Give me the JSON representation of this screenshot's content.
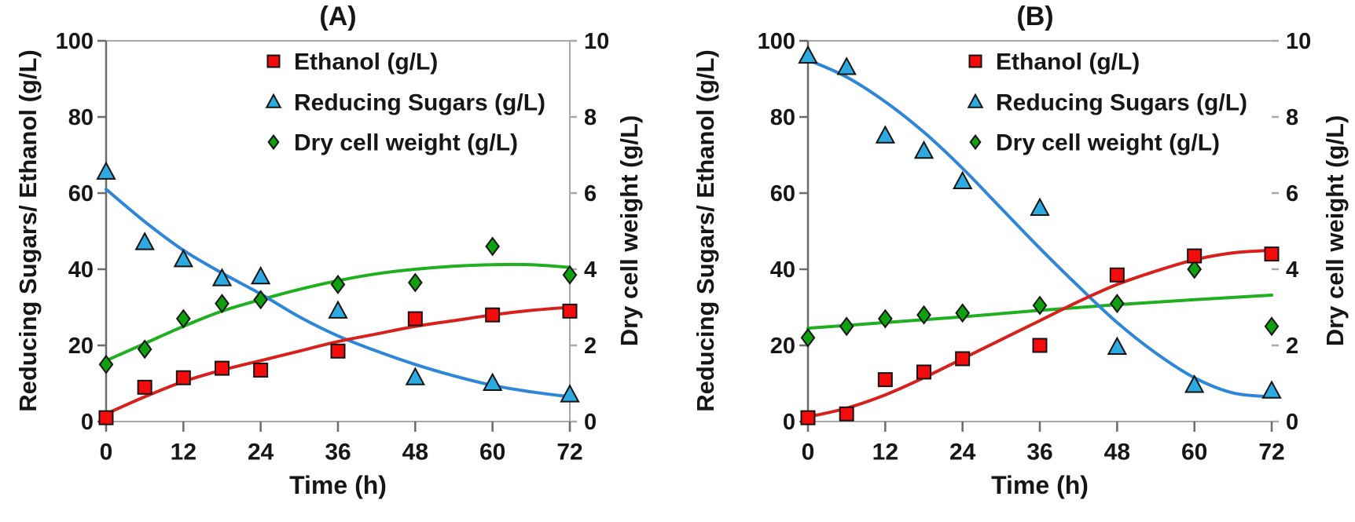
{
  "figure": {
    "background": "#ffffff",
    "panel_count": 2
  },
  "colors": {
    "ethanol_marker": "#f40b0b",
    "ethanol_line": "#d8201c",
    "sugars_marker": "#2eaae2",
    "sugars_line": "#2e86d8",
    "dcw_marker": "#0fa00f",
    "dcw_line": "#1faf1f",
    "marker_outline": "#141414",
    "frame_gray": "#a8a8a8",
    "axis_dark": "#6b6b6b",
    "text": "#161616"
  },
  "chart_data": [
    {
      "type": "scatter",
      "title": "(A)",
      "xlabel": "Time (h)",
      "ylabel_left": "Reducing Sugars/ Ethanol (g/L)",
      "ylabel_right": "Dry cell weight (g/L)",
      "x_max": 72,
      "x_ticks": [
        0,
        12,
        24,
        36,
        48,
        60,
        72
      ],
      "y_left_range": [
        0,
        100
      ],
      "y_left_ticks": [
        0,
        20,
        40,
        60,
        80,
        100
      ],
      "y_right_range": [
        0,
        10
      ],
      "y_right_ticks": [
        0,
        2,
        4,
        6,
        8,
        10
      ],
      "legend_position": "top-center-inside",
      "grid": false,
      "x": [
        0,
        6,
        12,
        18,
        24,
        36,
        48,
        60,
        72
      ],
      "series": [
        {
          "key": "ethanol",
          "name": "Ethanol (g/L)",
          "axis": "left",
          "marker": "square",
          "marker_color": "#f40b0b",
          "line_color": "#d8201c",
          "values": [
            1,
            9,
            11.5,
            14,
            13.5,
            18.5,
            27,
            28,
            29
          ],
          "trend": [
            [
              0,
              2
            ],
            [
              6,
              6.5
            ],
            [
              12,
              10.5
            ],
            [
              18,
              13.5
            ],
            [
              24,
              16
            ],
            [
              30,
              18.5
            ],
            [
              36,
              21
            ],
            [
              42,
              23
            ],
            [
              48,
              25
            ],
            [
              54,
              26.5
            ],
            [
              60,
              28
            ],
            [
              66,
              29.2
            ],
            [
              72,
              30
            ]
          ]
        },
        {
          "key": "reducing-sugars",
          "name": "Reducing Sugars (g/L)",
          "axis": "left",
          "marker": "triangle",
          "marker_color": "#2eaae2",
          "line_color": "#2e86d8",
          "values": [
            65.5,
            47,
            42.5,
            37.5,
            38,
            29,
            11.5,
            10,
            7
          ],
          "trend": [
            [
              0,
              61
            ],
            [
              6,
              52.5
            ],
            [
              12,
              45
            ],
            [
              18,
              39
            ],
            [
              24,
              33.5
            ],
            [
              30,
              27.5
            ],
            [
              36,
              22.5
            ],
            [
              42,
              18.5
            ],
            [
              48,
              15
            ],
            [
              54,
              12
            ],
            [
              60,
              9.5
            ],
            [
              66,
              7.8
            ],
            [
              72,
              6.5
            ]
          ]
        },
        {
          "key": "dry-cell-weight",
          "name": "Dry cell weight (g/L)",
          "axis": "right",
          "marker": "diamond",
          "marker_color": "#0fa00f",
          "line_color": "#1faf1f",
          "values": [
            1.5,
            1.9,
            2.7,
            3.1,
            3.2,
            3.6,
            3.65,
            4.6,
            3.85
          ],
          "trend": [
            [
              0,
              1.6
            ],
            [
              6,
              2.05
            ],
            [
              12,
              2.5
            ],
            [
              18,
              2.9
            ],
            [
              24,
              3.2
            ],
            [
              30,
              3.47
            ],
            [
              36,
              3.7
            ],
            [
              42,
              3.88
            ],
            [
              48,
              4.0
            ],
            [
              54,
              4.08
            ],
            [
              60,
              4.12
            ],
            [
              66,
              4.12
            ],
            [
              72,
              4.05
            ]
          ]
        }
      ]
    },
    {
      "type": "scatter",
      "title": "(B)",
      "xlabel": "Time (h)",
      "ylabel_left": "Reducing Sugars/ Ethanol (g/L)",
      "ylabel_right": "Dry cell weight (g/L)",
      "x_max": 72,
      "x_ticks": [
        0,
        12,
        24,
        36,
        48,
        60,
        72
      ],
      "y_left_range": [
        0,
        100
      ],
      "y_left_ticks": [
        0,
        20,
        40,
        60,
        80,
        100
      ],
      "y_right_range": [
        0,
        10
      ],
      "y_right_ticks": [
        0,
        2,
        4,
        6,
        8,
        10
      ],
      "legend_position": "top-center-inside",
      "grid": false,
      "x": [
        0,
        6,
        12,
        18,
        24,
        36,
        48,
        60,
        72
      ],
      "series": [
        {
          "key": "ethanol",
          "name": "Ethanol (g/L)",
          "axis": "left",
          "marker": "square",
          "marker_color": "#f40b0b",
          "line_color": "#d8201c",
          "values": [
            1,
            2,
            11,
            13,
            16.5,
            20,
            38.5,
            43.5,
            44
          ],
          "trend": [
            [
              0,
              1.2
            ],
            [
              6,
              3.5
            ],
            [
              12,
              7
            ],
            [
              18,
              11.5
            ],
            [
              24,
              16.5
            ],
            [
              30,
              21.5
            ],
            [
              36,
              26.5
            ],
            [
              42,
              31.5
            ],
            [
              48,
              36
            ],
            [
              54,
              39.5
            ],
            [
              60,
              42.5
            ],
            [
              66,
              44.3
            ],
            [
              72,
              45
            ]
          ]
        },
        {
          "key": "reducing-sugars",
          "name": "Reducing Sugars (g/L)",
          "axis": "left",
          "marker": "triangle",
          "marker_color": "#2eaae2",
          "line_color": "#2e86d8",
          "values": [
            96,
            93,
            75,
            71,
            63,
            56,
            19.5,
            9.5,
            8
          ],
          "trend": [
            [
              0,
              95
            ],
            [
              6,
              90.5
            ],
            [
              12,
              84
            ],
            [
              18,
              76
            ],
            [
              24,
              66.5
            ],
            [
              30,
              56
            ],
            [
              36,
              45.5
            ],
            [
              42,
              35.5
            ],
            [
              48,
              26
            ],
            [
              54,
              18
            ],
            [
              60,
              11.5
            ],
            [
              66,
              7.5
            ],
            [
              72,
              6.5
            ]
          ]
        },
        {
          "key": "dry-cell-weight",
          "name": "Dry cell weight (g/L)",
          "axis": "right",
          "marker": "diamond",
          "marker_color": "#0fa00f",
          "line_color": "#1faf1f",
          "values": [
            2.2,
            2.5,
            2.7,
            2.8,
            2.85,
            3.05,
            3.1,
            4.0,
            2.5
          ],
          "trend": [
            [
              0,
              2.45
            ],
            [
              12,
              2.6
            ],
            [
              24,
              2.75
            ],
            [
              36,
              2.92
            ],
            [
              48,
              3.07
            ],
            [
              60,
              3.2
            ],
            [
              72,
              3.32
            ]
          ]
        }
      ]
    }
  ]
}
